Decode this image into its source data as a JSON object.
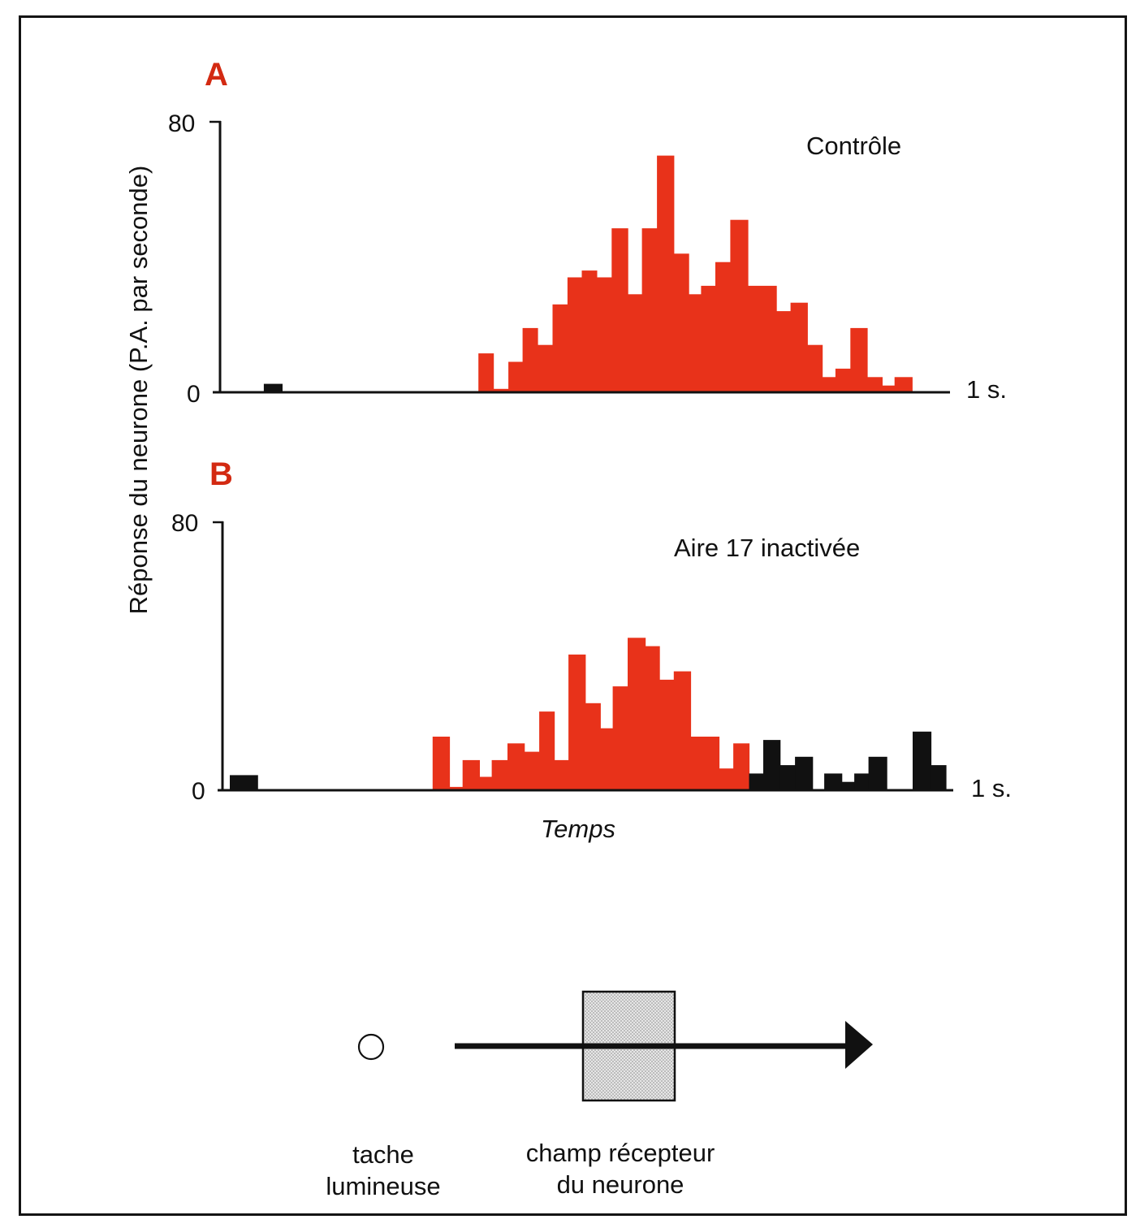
{
  "chart_data": [
    {
      "type": "bar",
      "panel": "A",
      "title": "Contrôle",
      "xlabel": "",
      "ylabel": "Réponse du neurone (P.A. par seconde)",
      "ylim": [
        0,
        80
      ],
      "yticks": [
        "0",
        "80"
      ],
      "x_end_label": "1 s.",
      "xlim": [
        0,
        1
      ],
      "bin_width": 0.02,
      "colors": {
        "stimulus": "#e8321a",
        "spontaneous": "#111111"
      },
      "series": [
        {
          "name": "spontaneous",
          "color": "black",
          "bins": [
            {
              "t": 0.06,
              "w": 0.025,
              "v": 2.5
            }
          ]
        },
        {
          "name": "stimulus-in-field",
          "color": "red",
          "bins": [
            {
              "t": 0.354,
              "w": 0.0205,
              "v": 11.5
            },
            {
              "t": 0.3745,
              "w": 0.0205,
              "v": 1
            },
            {
              "t": 0.395,
              "w": 0.0195,
              "v": 9
            },
            {
              "t": 0.4145,
              "w": 0.0205,
              "v": 19
            },
            {
              "t": 0.435,
              "w": 0.0205,
              "v": 14
            },
            {
              "t": 0.4555,
              "w": 0.0205,
              "v": 26
            },
            {
              "t": 0.476,
              "w": 0.0195,
              "v": 34
            },
            {
              "t": 0.4955,
              "w": 0.0205,
              "v": 36
            },
            {
              "t": 0.516,
              "w": 0.0205,
              "v": 34
            },
            {
              "t": 0.5365,
              "w": 0.022,
              "v": 48.5
            },
            {
              "t": 0.5585,
              "w": 0.0195,
              "v": 29
            },
            {
              "t": 0.578,
              "w": 0.0205,
              "v": 48.5
            },
            {
              "t": 0.5985,
              "w": 0.023,
              "v": 70
            },
            {
              "t": 0.6215,
              "w": 0.0205,
              "v": 41
            },
            {
              "t": 0.642,
              "w": 0.017,
              "v": 29
            },
            {
              "t": 0.659,
              "w": 0.0195,
              "v": 31.5
            },
            {
              "t": 0.6785,
              "w": 0.0205,
              "v": 38.5
            },
            {
              "t": 0.699,
              "w": 0.024,
              "v": 51
            },
            {
              "t": 0.723,
              "w": 0.039,
              "v": 31.5
            },
            {
              "t": 0.762,
              "w": 0.0195,
              "v": 24
            },
            {
              "t": 0.7815,
              "w": 0.023,
              "v": 26.5
            },
            {
              "t": 0.8045,
              "w": 0.0205,
              "v": 14
            },
            {
              "t": 0.825,
              "w": 0.018,
              "v": 4.5
            },
            {
              "t": 0.843,
              "w": 0.0205,
              "v": 7
            },
            {
              "t": 0.8635,
              "w": 0.023,
              "v": 19
            },
            {
              "t": 0.8865,
              "w": 0.0205,
              "v": 4.5
            },
            {
              "t": 0.907,
              "w": 0.017,
              "v": 2
            },
            {
              "t": 0.924,
              "w": 0.024,
              "v": 4.5
            }
          ]
        }
      ]
    },
    {
      "type": "bar",
      "panel": "B",
      "title": "Aire 17 inactivée",
      "xlabel": "Temps",
      "ylabel": "Réponse du neurone (P.A. par seconde)",
      "ylim": [
        0,
        80
      ],
      "yticks": [
        "0",
        "80"
      ],
      "x_end_label": "1 s.",
      "xlim": [
        0,
        1
      ],
      "colors": {
        "stimulus": "#e8321a",
        "spontaneous": "#111111"
      },
      "series": [
        {
          "name": "spontaneous-before",
          "color": "black",
          "bins": [
            {
              "t": 0.01,
              "w": 0.038,
              "v": 4.5
            }
          ]
        },
        {
          "name": "stimulus-in-field",
          "color": "red",
          "bins": [
            {
              "t": 0.2875,
              "w": 0.023,
              "v": 16
            },
            {
              "t": 0.3105,
              "w": 0.018,
              "v": 1
            },
            {
              "t": 0.3285,
              "w": 0.023,
              "v": 9
            },
            {
              "t": 0.3515,
              "w": 0.017,
              "v": 4
            },
            {
              "t": 0.3685,
              "w": 0.0215,
              "v": 9
            },
            {
              "t": 0.39,
              "w": 0.023,
              "v": 14
            },
            {
              "t": 0.413,
              "w": 0.0205,
              "v": 11.5
            },
            {
              "t": 0.4335,
              "w": 0.0205,
              "v": 23.5
            },
            {
              "t": 0.454,
              "w": 0.0195,
              "v": 9
            },
            {
              "t": 0.4735,
              "w": 0.023,
              "v": 40.5
            },
            {
              "t": 0.4965,
              "w": 0.0205,
              "v": 26
            },
            {
              "t": 0.517,
              "w": 0.017,
              "v": 18.5
            },
            {
              "t": 0.534,
              "w": 0.0205,
              "v": 31
            },
            {
              "t": 0.5545,
              "w": 0.024,
              "v": 45.5
            },
            {
              "t": 0.5785,
              "w": 0.0195,
              "v": 43
            },
            {
              "t": 0.598,
              "w": 0.0195,
              "v": 33
            },
            {
              "t": 0.6175,
              "w": 0.023,
              "v": 35.5
            },
            {
              "t": 0.6405,
              "w": 0.039,
              "v": 16
            },
            {
              "t": 0.6795,
              "w": 0.0195,
              "v": 6.5
            },
            {
              "t": 0.699,
              "w": 0.0215,
              "v": 14
            }
          ]
        },
        {
          "name": "spontaneous-after",
          "color": "black",
          "bins": [
            {
              "t": 0.7205,
              "w": 0.0195,
              "v": 5
            },
            {
              "t": 0.74,
              "w": 0.023,
              "v": 15
            },
            {
              "t": 0.763,
              "w": 0.0205,
              "v": 7.5
            },
            {
              "t": 0.7835,
              "w": 0.024,
              "v": 10
            },
            {
              "t": 0.8235,
              "w": 0.024,
              "v": 5
            },
            {
              "t": 0.8475,
              "w": 0.017,
              "v": 2.5
            },
            {
              "t": 0.8645,
              "w": 0.0195,
              "v": 5
            },
            {
              "t": 0.884,
              "w": 0.025,
              "v": 10
            },
            {
              "t": 0.9445,
              "w": 0.025,
              "v": 17.5
            },
            {
              "t": 0.9695,
              "w": 0.0205,
              "v": 7.5
            }
          ]
        }
      ]
    }
  ],
  "panels": {
    "a": {
      "letter": "A",
      "title": "Contrôle",
      "y_top": "80",
      "y_zero": "0",
      "x_end": "1 s."
    },
    "b": {
      "letter": "B",
      "title": "Aire 17 inactivée",
      "y_top": "80",
      "y_zero": "0",
      "x_end": "1 s.",
      "xlabel": "Temps"
    }
  },
  "ylabel": "Réponse du neurone (P.A. par seconde)",
  "diagram": {
    "spot_label_line1": "tache",
    "spot_label_line2": "lumineuse",
    "field_label_line1": "champ récepteur",
    "field_label_line2": "du neurone"
  }
}
